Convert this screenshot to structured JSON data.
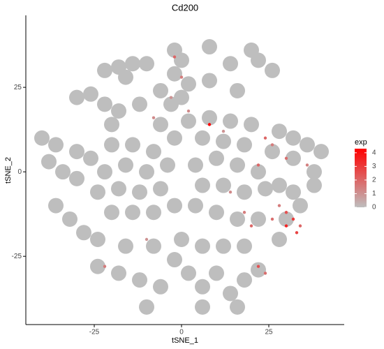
{
  "chart_data": {
    "type": "scatter",
    "title": "Cd200",
    "x_label": "tSNE_1",
    "y_label": "tSNE_2",
    "xlim": [
      -44.6,
      46.6
    ],
    "ylim": [
      -45.2,
      46.3
    ],
    "xticks": [
      -25,
      0,
      25
    ],
    "yticks": [
      -25,
      0,
      25
    ],
    "legend_title": "exp",
    "legend_lim": [
      0,
      4.3
    ],
    "legend_ticks": [
      0,
      1,
      2,
      3,
      4
    ],
    "low_color": "#bebebe",
    "high_color": "#ff0000",
    "x": [
      -22,
      -18,
      -14,
      -10,
      -16,
      -2,
      0,
      -2,
      2,
      0,
      -3,
      8,
      14,
      22,
      26,
      8,
      16,
      20,
      -30,
      -26,
      -22,
      -18,
      -12,
      -6,
      -20,
      -6,
      2,
      8,
      14,
      20,
      -2,
      6,
      12,
      18,
      28,
      32,
      36,
      40,
      26,
      32,
      38,
      -40,
      -36,
      -38,
      -34,
      -30,
      -30,
      -26,
      -20,
      -14,
      -8,
      -22,
      -16,
      -10,
      -4,
      -24,
      -18,
      -12,
      -6,
      -20,
      -14,
      -8,
      -2,
      -36,
      -32,
      -28,
      -24,
      4,
      10,
      16,
      22,
      6,
      12,
      18,
      24,
      4,
      10,
      16,
      22,
      28,
      32,
      38,
      34,
      30,
      28,
      -24,
      -18,
      -12,
      -6,
      -2,
      2,
      6,
      10,
      14,
      18,
      22,
      -8,
      0,
      6,
      12,
      18,
      -16,
      -10,
      6,
      16,
      30,
      32,
      34,
      30,
      28,
      33,
      26,
      -2,
      0,
      -3,
      2,
      8,
      24,
      26,
      22,
      18,
      20,
      22,
      24,
      -22,
      -10,
      14,
      30,
      36,
      -8,
      12
    ],
    "y": [
      30,
      31,
      32,
      32,
      28,
      36,
      33,
      29,
      26,
      22,
      20,
      37,
      32,
      33,
      30,
      27,
      24,
      36,
      22,
      23,
      20,
      18,
      20,
      24,
      14,
      14,
      15,
      16,
      15,
      14,
      10,
      10,
      9,
      8,
      12,
      10,
      8,
      6,
      6,
      4,
      0,
      10,
      8,
      3,
      0,
      6,
      -2,
      4,
      8,
      8,
      6,
      0,
      2,
      0,
      2,
      -6,
      -5,
      -6,
      -5,
      -12,
      -12,
      -12,
      -10,
      -10,
      -14,
      -18,
      -20,
      2,
      4,
      2,
      0,
      -4,
      -4,
      -6,
      -5,
      -10,
      -12,
      -14,
      -14,
      -4,
      -6,
      -4,
      -10,
      -14,
      -20,
      -28,
      -30,
      -32,
      -34,
      -26,
      -30,
      -34,
      -30,
      -36,
      -32,
      -29,
      -22,
      -20,
      -22,
      -22,
      -22,
      -22,
      -40,
      -40,
      -40,
      -12,
      -14,
      -16,
      -16,
      -10,
      -18,
      -14,
      34,
      28,
      22,
      18,
      14,
      10,
      8,
      2,
      -12,
      -16,
      -28,
      -30,
      -28,
      -20,
      -6,
      4,
      2,
      16,
      12
    ],
    "values": [
      0,
      0,
      0,
      0,
      0,
      0,
      0,
      0,
      0,
      0,
      0,
      0,
      0,
      0,
      0,
      0,
      0,
      0,
      0,
      0,
      0,
      0,
      0,
      0,
      0,
      0,
      0,
      0,
      0,
      0,
      0,
      0,
      0,
      0,
      0,
      0,
      0,
      0,
      0,
      0,
      0,
      0,
      0,
      0,
      0,
      0,
      0,
      0,
      0,
      0,
      0,
      0,
      0,
      0,
      0,
      0,
      0,
      0,
      0,
      0,
      0,
      0,
      0,
      0,
      0,
      0,
      0,
      0,
      0,
      0,
      0,
      0,
      0,
      0,
      0,
      0,
      0,
      0,
      0,
      0,
      0,
      0,
      0,
      0,
      0,
      0,
      0,
      0,
      0,
      0,
      0,
      0,
      0,
      0,
      0,
      0,
      0,
      0,
      0,
      0,
      0,
      0,
      0,
      0,
      0,
      2.5,
      3,
      2,
      3.5,
      1.5,
      2.8,
      1.8,
      2,
      1.5,
      1,
      1.2,
      4.2,
      2,
      1.5,
      2,
      1.5,
      2,
      2.5,
      1.8,
      1.5,
      1,
      1.2,
      1.8,
      1.4,
      1.2,
      1
    ]
  }
}
